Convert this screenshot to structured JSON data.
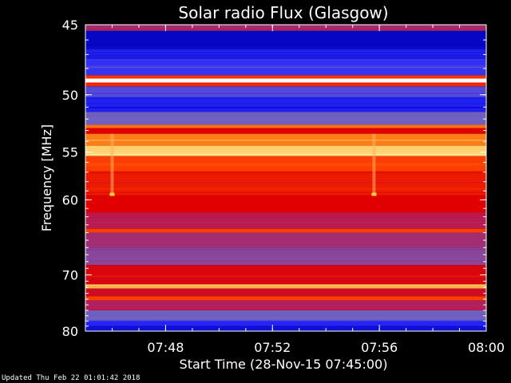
{
  "chart_data": {
    "type": "heatmap",
    "title": "Solar radio Flux (Glasgow)",
    "ylabel": "Frequency [MHz]",
    "xlabel": "Start Time (28-Nov-15 07:45:00)",
    "x_range_minutes": [
      0,
      15
    ],
    "x_ticks": [
      {
        "label": "07:48",
        "minute": 3
      },
      {
        "label": "07:52",
        "minute": 7
      },
      {
        "label": "07:56",
        "minute": 11
      },
      {
        "label": "08:00",
        "minute": 15
      }
    ],
    "y_range": [
      45,
      80
    ],
    "y_scale": "reciprocal",
    "y_ticks": [
      {
        "label": "45",
        "value": 45
      },
      {
        "label": "50",
        "value": 50
      },
      {
        "label": "55",
        "value": 55
      },
      {
        "label": "60",
        "value": 60
      },
      {
        "label": "70",
        "value": 70
      },
      {
        "label": "80",
        "value": 80
      }
    ],
    "colormap": [
      "#0000b8",
      "#2828ff",
      "#7060c0",
      "#b02060",
      "#e00000",
      "#ff4000",
      "#ff9020",
      "#ffe080",
      "#ffffff"
    ],
    "frequency_bands": [
      {
        "from": 45.0,
        "to": 45.4,
        "intensity": 0.35
      },
      {
        "from": 45.4,
        "to": 46.6,
        "intensity": 0.02
      },
      {
        "from": 46.6,
        "to": 47.3,
        "intensity": 0.08
      },
      {
        "from": 47.3,
        "to": 48.5,
        "intensity": 0.15
      },
      {
        "from": 48.5,
        "to": 48.75,
        "intensity": 0.6
      },
      {
        "from": 48.75,
        "to": 49.05,
        "intensity": 1.0
      },
      {
        "from": 49.05,
        "to": 49.35,
        "intensity": 0.55
      },
      {
        "from": 49.35,
        "to": 50.2,
        "intensity": 0.2
      },
      {
        "from": 50.2,
        "to": 51.4,
        "intensity": 0.1
      },
      {
        "from": 51.4,
        "to": 52.5,
        "intensity": 0.25
      },
      {
        "from": 52.5,
        "to": 52.8,
        "intensity": 0.7
      },
      {
        "from": 52.8,
        "to": 53.3,
        "intensity": 0.5
      },
      {
        "from": 53.3,
        "to": 54.4,
        "intensity": 0.72
      },
      {
        "from": 54.4,
        "to": 55.4,
        "intensity": 0.85
      },
      {
        "from": 55.4,
        "to": 57.0,
        "intensity": 0.62
      },
      {
        "from": 57.0,
        "to": 59.5,
        "intensity": 0.55
      },
      {
        "from": 59.5,
        "to": 61.5,
        "intensity": 0.5
      },
      {
        "from": 61.5,
        "to": 63.5,
        "intensity": 0.4
      },
      {
        "from": 63.5,
        "to": 64.0,
        "intensity": 0.62
      },
      {
        "from": 64.0,
        "to": 66.0,
        "intensity": 0.35
      },
      {
        "from": 66.0,
        "to": 68.5,
        "intensity": 0.3
      },
      {
        "from": 68.5,
        "to": 71.5,
        "intensity": 0.48
      },
      {
        "from": 71.5,
        "to": 72.2,
        "intensity": 0.8
      },
      {
        "from": 72.2,
        "to": 73.5,
        "intensity": 0.45
      },
      {
        "from": 73.5,
        "to": 74.2,
        "intensity": 0.62
      },
      {
        "from": 74.2,
        "to": 76.0,
        "intensity": 0.38
      },
      {
        "from": 76.0,
        "to": 78.0,
        "intensity": 0.25
      },
      {
        "from": 78.0,
        "to": 79.0,
        "intensity": 0.12
      },
      {
        "from": 79.0,
        "to": 80.0,
        "intensity": 0.05
      }
    ],
    "vertical_bursts_minutes": [
      1.0,
      10.8
    ]
  },
  "footer": "Updated Thu Feb 22 01:01:42 2018"
}
